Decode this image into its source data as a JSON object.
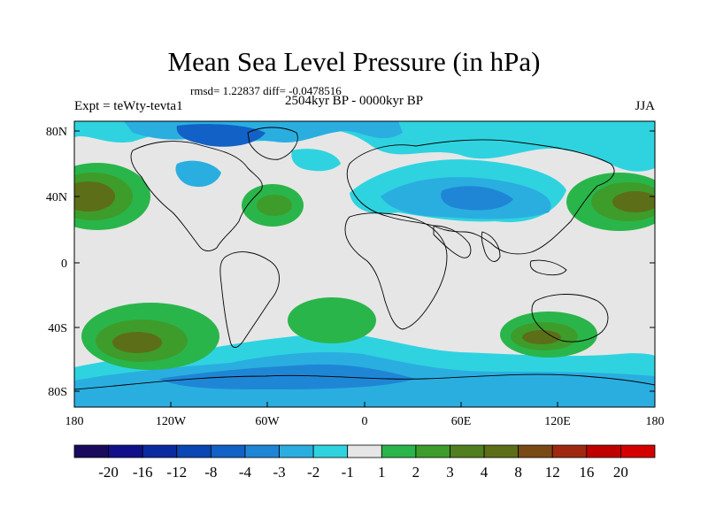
{
  "title": "Mean Sea Level Pressure (in hPa)",
  "stats": "rmsd= 1.22837 diff= -0.0478516",
  "period": "2504kyr BP - 0000kyr BP",
  "experiment": "Expt = teWty-tevta1",
  "season": "JJA",
  "y_ticks": [
    "80N",
    "40N",
    "0",
    "40S",
    "80S"
  ],
  "x_ticks": [
    "180",
    "120W",
    "60W",
    "0",
    "60E",
    "120E",
    "180"
  ],
  "colorbar": {
    "labels": [
      "-20",
      "-16",
      "-12",
      "-8",
      "-4",
      "-3",
      "-2",
      "-1",
      "1",
      "2",
      "3",
      "4",
      "8",
      "12",
      "16",
      "20"
    ],
    "colors": [
      "#1a0a5e",
      "#120f8a",
      "#0a2aa0",
      "#0b46b5",
      "#1261c6",
      "#1f86d6",
      "#2aaee0",
      "#2fd3e0",
      "#e6e6e6",
      "#2ab54a",
      "#3e9c2b",
      "#4f7f1f",
      "#5c6e18",
      "#7a4a14",
      "#a02810",
      "#c00000",
      "#d40000"
    ]
  },
  "colors": {
    "land_outline": "#000000",
    "neutral": "#e6e6e6",
    "light_blue": "#2fd3e0",
    "blue": "#2aaee0",
    "mid_blue": "#1f86d6",
    "dark_blue": "#1261c6",
    "green": "#2ab54a",
    "dark_green": "#3e9c2b",
    "olive": "#5c6e18",
    "brown": "#7a4a14"
  }
}
